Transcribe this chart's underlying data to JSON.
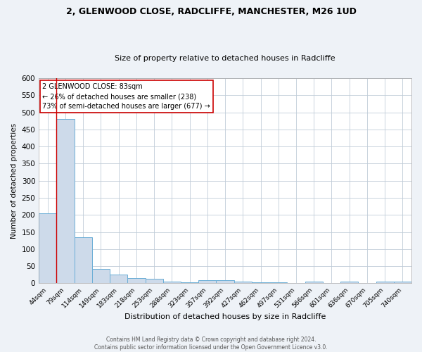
{
  "title1": "2, GLENWOOD CLOSE, RADCLIFFE, MANCHESTER, M26 1UD",
  "title2": "Size of property relative to detached houses in Radcliffe",
  "xlabel": "Distribution of detached houses by size in Radcliffe",
  "ylabel": "Number of detached properties",
  "footer1": "Contains HM Land Registry data © Crown copyright and database right 2024.",
  "footer2": "Contains public sector information licensed under the Open Government Licence v3.0.",
  "bin_labels": [
    "44sqm",
    "79sqm",
    "114sqm",
    "149sqm",
    "183sqm",
    "218sqm",
    "253sqm",
    "288sqm",
    "323sqm",
    "357sqm",
    "392sqm",
    "427sqm",
    "462sqm",
    "497sqm",
    "531sqm",
    "566sqm",
    "601sqm",
    "636sqm",
    "670sqm",
    "705sqm",
    "740sqm"
  ],
  "bar_values": [
    205,
    480,
    135,
    43,
    25,
    15,
    13,
    5,
    4,
    10,
    10,
    5,
    4,
    4,
    0,
    6,
    0,
    6,
    0,
    6,
    6
  ],
  "bar_color": "#cddaea",
  "bar_edgecolor": "#6baed6",
  "ylim": [
    0,
    600
  ],
  "yticks": [
    0,
    50,
    100,
    150,
    200,
    250,
    300,
    350,
    400,
    450,
    500,
    550,
    600
  ],
  "property_line_color": "#cc0000",
  "annotation_text": "2 GLENWOOD CLOSE: 83sqm\n← 26% of detached houses are smaller (238)\n73% of semi-detached houses are larger (677) →",
  "annotation_box_color": "#ffffff",
  "annotation_box_edgecolor": "#cc0000",
  "bg_color": "#eef2f7",
  "plot_bg_color": "#ffffff",
  "grid_color": "#c0ccd8"
}
